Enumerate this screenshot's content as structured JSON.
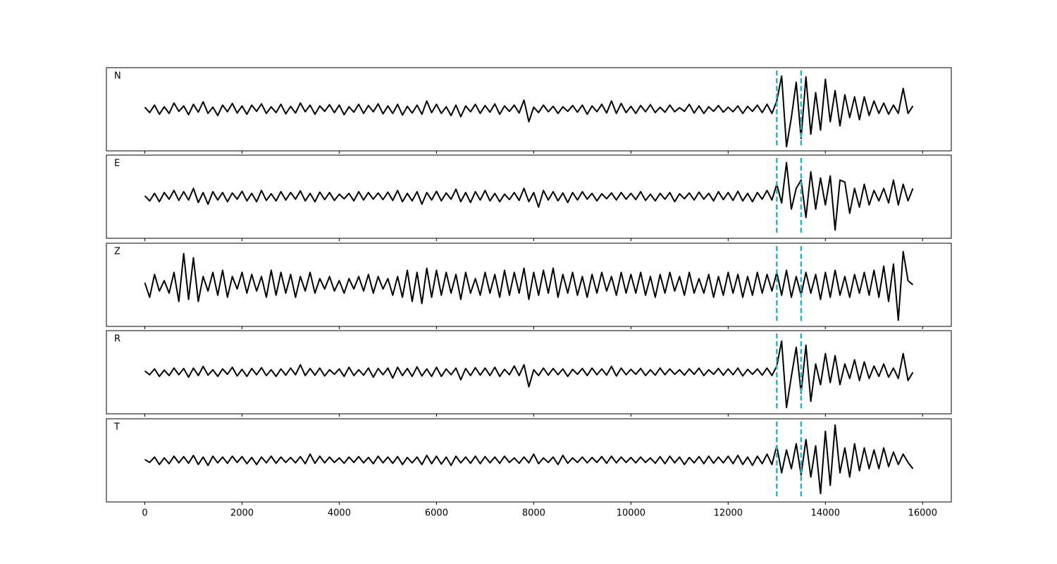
{
  "chart_data": {
    "type": "line",
    "x": [
      0,
      100,
      200,
      300,
      400,
      500,
      600,
      700,
      800,
      900,
      1000,
      1100,
      1200,
      1300,
      1400,
      1500,
      1600,
      1700,
      1800,
      1900,
      2000,
      2100,
      2200,
      2300,
      2400,
      2500,
      2600,
      2700,
      2800,
      2900,
      3000,
      3100,
      3200,
      3300,
      3400,
      3500,
      3600,
      3700,
      3800,
      3900,
      4000,
      4100,
      4200,
      4300,
      4400,
      4500,
      4600,
      4700,
      4800,
      4900,
      5000,
      5100,
      5200,
      5300,
      5400,
      5500,
      5600,
      5700,
      5800,
      5900,
      6000,
      6100,
      6200,
      6300,
      6400,
      6500,
      6600,
      6700,
      6800,
      6900,
      7000,
      7100,
      7200,
      7300,
      7400,
      7500,
      7600,
      7700,
      7800,
      7900,
      8000,
      8100,
      8200,
      8300,
      8400,
      8500,
      8600,
      8700,
      8800,
      8900,
      9000,
      9100,
      9200,
      9300,
      9400,
      9500,
      9600,
      9700,
      9800,
      9900,
      10000,
      10100,
      10200,
      10300,
      10400,
      10500,
      10600,
      10700,
      10800,
      10900,
      11000,
      11100,
      11200,
      11300,
      11400,
      11500,
      11600,
      11700,
      11800,
      11900,
      12000,
      12100,
      12200,
      12300,
      12400,
      12500,
      12600,
      12700,
      12800,
      12900,
      13000,
      13100,
      13200,
      13300,
      13400,
      13500,
      13600,
      13700,
      13800,
      13900,
      14000,
      14100,
      14200,
      14300,
      14400,
      14500,
      14600,
      14700,
      14800,
      14900,
      15000,
      15100,
      15200,
      15300,
      15400,
      15500,
      15600,
      15700,
      15800
    ],
    "series": [
      {
        "name": "N",
        "color": "#000000",
        "values": [
          0.05,
          -0.08,
          0.1,
          -0.12,
          0.06,
          -0.1,
          0.15,
          -0.05,
          0.08,
          -0.13,
          0.12,
          -0.07,
          0.18,
          -0.1,
          0.05,
          -0.15,
          0.1,
          -0.06,
          0.14,
          -0.09,
          0.08,
          -0.12,
          0.1,
          -0.05,
          0.13,
          -0.1,
          0.06,
          -0.08,
          0.12,
          -0.11,
          0.07,
          -0.09,
          0.15,
          -0.06,
          0.1,
          -0.12,
          0.08,
          -0.05,
          0.11,
          -0.08,
          0.1,
          -0.13,
          0.06,
          -0.07,
          0.12,
          -0.1,
          0.09,
          -0.06,
          0.13,
          -0.11,
          0.08,
          -0.1,
          0.12,
          -0.14,
          0.07,
          -0.09,
          0.1,
          -0.12,
          0.2,
          -0.08,
          0.12,
          -0.1,
          0.06,
          -0.15,
          0.1,
          -0.18,
          0.08,
          -0.06,
          0.12,
          -0.1,
          0.09,
          -0.07,
          0.13,
          -0.12,
          0.08,
          -0.05,
          0.1,
          -0.09,
          0.22,
          -0.3,
          0.05,
          -0.08,
          0.1,
          -0.06,
          0.07,
          -0.1,
          0.06,
          -0.05,
          0.09,
          -0.07,
          0.1,
          -0.12,
          0.08,
          -0.06,
          0.12,
          -0.09,
          0.2,
          -0.1,
          0.14,
          -0.08,
          0.07,
          -0.1,
          0.09,
          -0.06,
          0.11,
          -0.08,
          0.05,
          -0.07,
          0.1,
          -0.06,
          0.04,
          -0.05,
          0.12,
          -0.09,
          0.08,
          -0.1,
          0.06,
          -0.05,
          0.09,
          -0.07,
          0.05,
          -0.06,
          0.08,
          -0.1,
          0.07,
          -0.05,
          0.1,
          -0.08,
          0.12,
          -0.1,
          0.2,
          0.8,
          -0.9,
          -0.2,
          0.65,
          -0.7,
          0.78,
          -0.6,
          0.4,
          -0.5,
          0.72,
          -0.3,
          0.45,
          -0.4,
          0.35,
          -0.2,
          0.3,
          -0.25,
          0.3,
          -0.15,
          0.2,
          -0.1,
          0.15,
          -0.12,
          0.1,
          -0.1,
          0.5,
          -0.1,
          0.08
        ]
      },
      {
        "name": "E",
        "color": "#000000",
        "values": [
          0.02,
          -0.1,
          0.08,
          -0.12,
          0.1,
          -0.06,
          0.15,
          -0.09,
          0.12,
          -0.08,
          0.2,
          -0.14,
          0.1,
          -0.18,
          0.12,
          -0.08,
          0.1,
          -0.12,
          0.09,
          -0.06,
          0.13,
          -0.1,
          0.08,
          -0.12,
          0.15,
          -0.09,
          0.07,
          -0.1,
          0.12,
          -0.08,
          0.1,
          -0.06,
          0.14,
          -0.1,
          0.08,
          -0.12,
          0.11,
          -0.07,
          0.1,
          -0.09,
          0.06,
          -0.05,
          0.08,
          -0.1,
          0.12,
          -0.08,
          0.1,
          -0.06,
          0.09,
          -0.07,
          0.11,
          -0.09,
          0.15,
          -0.12,
          0.08,
          -0.1,
          0.12,
          -0.18,
          0.1,
          -0.08,
          0.13,
          -0.1,
          0.09,
          -0.06,
          0.18,
          -0.12,
          0.1,
          -0.14,
          0.12,
          -0.08,
          0.15,
          -0.1,
          0.08,
          -0.12,
          0.06,
          -0.07,
          0.1,
          -0.09,
          0.2,
          -0.12,
          0.1,
          -0.25,
          0.15,
          -0.08,
          0.12,
          -0.1,
          0.09,
          -0.14,
          0.1,
          -0.08,
          0.12,
          -0.06,
          0.08,
          -0.1,
          0.07,
          -0.05,
          0.09,
          -0.08,
          0.1,
          -0.06,
          0.08,
          -0.07,
          0.12,
          -0.09,
          0.06,
          -0.1,
          0.08,
          -0.06,
          0.1,
          -0.12,
          0.07,
          -0.05,
          0.09,
          -0.08,
          0.11,
          -0.06,
          0.08,
          -0.1,
          0.12,
          -0.07,
          0.1,
          -0.09,
          0.13,
          -0.1,
          0.08,
          -0.12,
          0.1,
          -0.06,
          0.15,
          -0.08,
          0.3,
          -0.15,
          0.82,
          -0.3,
          0.2,
          0.4,
          -0.5,
          0.6,
          -0.3,
          0.45,
          -0.2,
          0.5,
          -0.8,
          0.4,
          0.35,
          -0.4,
          0.2,
          -0.25,
          0.3,
          -0.2,
          0.15,
          -0.1,
          0.2,
          -0.15,
          0.4,
          -0.2,
          0.3,
          -0.1,
          0.2
        ]
      },
      {
        "name": "Z",
        "color": "#000000",
        "values": [
          0.05,
          -0.3,
          0.25,
          -0.15,
          0.1,
          -0.2,
          0.3,
          -0.4,
          0.75,
          -0.35,
          0.65,
          -0.4,
          0.2,
          -0.15,
          0.3,
          -0.25,
          0.35,
          -0.3,
          0.2,
          -0.1,
          0.3,
          -0.2,
          0.25,
          -0.15,
          0.2,
          -0.3,
          0.35,
          -0.25,
          0.3,
          -0.2,
          0.25,
          -0.3,
          0.2,
          -0.15,
          0.3,
          -0.2,
          0.15,
          -0.1,
          0.2,
          -0.15,
          0.1,
          -0.2,
          0.15,
          -0.1,
          0.2,
          -0.15,
          0.25,
          -0.2,
          0.2,
          -0.1,
          0.15,
          -0.25,
          0.2,
          -0.3,
          0.35,
          -0.4,
          0.3,
          -0.45,
          0.4,
          -0.3,
          0.35,
          -0.25,
          0.3,
          -0.2,
          0.25,
          -0.35,
          0.3,
          -0.2,
          0.15,
          -0.25,
          0.3,
          -0.2,
          0.25,
          -0.3,
          0.35,
          -0.25,
          0.3,
          -0.2,
          0.4,
          -0.35,
          0.3,
          -0.25,
          0.35,
          -0.2,
          0.4,
          -0.3,
          0.25,
          -0.2,
          0.3,
          -0.25,
          0.2,
          -0.3,
          0.25,
          -0.2,
          0.3,
          -0.15,
          0.2,
          -0.25,
          0.3,
          -0.2,
          0.25,
          -0.2,
          0.3,
          -0.25,
          0.2,
          -0.3,
          0.25,
          -0.2,
          0.3,
          -0.15,
          0.2,
          -0.25,
          0.3,
          -0.2,
          0.15,
          -0.2,
          0.25,
          -0.3,
          0.2,
          -0.25,
          0.3,
          -0.2,
          0.25,
          -0.3,
          0.2,
          -0.25,
          0.3,
          -0.2,
          0.25,
          -0.15,
          0.3,
          -0.25,
          0.35,
          -0.3,
          0.2,
          -0.25,
          0.3,
          -0.2,
          0.25,
          -0.35,
          0.3,
          -0.3,
          0.35,
          -0.25,
          0.2,
          -0.3,
          0.25,
          -0.2,
          0.3,
          -0.25,
          0.35,
          -0.3,
          0.45,
          -0.4,
          0.5,
          -0.85,
          0.8,
          0.1,
          0.0
        ]
      },
      {
        "name": "R",
        "color": "#000000",
        "values": [
          0.03,
          -0.06,
          0.08,
          -0.1,
          0.05,
          -0.08,
          0.1,
          -0.06,
          0.09,
          -0.12,
          0.1,
          -0.08,
          0.14,
          -0.07,
          0.06,
          -0.1,
          0.08,
          -0.05,
          0.12,
          -0.09,
          0.07,
          -0.1,
          0.09,
          -0.06,
          0.11,
          -0.08,
          0.06,
          -0.1,
          0.08,
          -0.07,
          0.1,
          -0.06,
          0.18,
          -0.08,
          0.09,
          -0.07,
          0.1,
          -0.09,
          0.06,
          -0.05,
          0.08,
          -0.1,
          0.12,
          -0.08,
          0.06,
          -0.07,
          0.1,
          -0.12,
          0.09,
          -0.06,
          0.1,
          -0.14,
          0.12,
          -0.08,
          0.09,
          -0.1,
          0.13,
          -0.09,
          0.08,
          -0.1,
          0.12,
          -0.1,
          0.08,
          -0.06,
          0.1,
          -0.18,
          0.09,
          -0.08,
          0.11,
          -0.07,
          0.1,
          -0.08,
          0.12,
          -0.1,
          0.07,
          -0.06,
          0.15,
          -0.08,
          0.18,
          -0.35,
          0.06,
          -0.08,
          0.1,
          -0.07,
          0.09,
          -0.06,
          0.08,
          -0.1,
          0.07,
          -0.05,
          0.09,
          -0.08,
          0.1,
          -0.06,
          0.08,
          -0.07,
          0.14,
          -0.09,
          0.1,
          -0.06,
          0.07,
          -0.05,
          0.09,
          -0.08,
          0.06,
          -0.07,
          0.1,
          -0.06,
          0.08,
          -0.05,
          0.06,
          -0.07,
          0.08,
          -0.05,
          0.1,
          -0.08,
          0.06,
          -0.05,
          0.09,
          -0.07,
          0.08,
          -0.06,
          0.1,
          -0.09,
          0.07,
          -0.05,
          0.08,
          -0.07,
          0.1,
          -0.08,
          0.15,
          0.75,
          -0.85,
          -0.1,
          0.6,
          -0.5,
          0.65,
          -0.7,
          0.2,
          -0.3,
          0.45,
          -0.25,
          0.4,
          -0.3,
          0.2,
          -0.15,
          0.3,
          -0.2,
          0.25,
          -0.15,
          0.15,
          -0.1,
          0.2,
          -0.12,
          0.1,
          -0.15,
          0.45,
          -0.2,
          0.0
        ]
      },
      {
        "name": "T",
        "color": "#000000",
        "values": [
          0.02,
          -0.05,
          0.08,
          -0.1,
          0.06,
          -0.08,
          0.1,
          -0.06,
          0.09,
          -0.07,
          0.12,
          -0.1,
          0.08,
          -0.12,
          0.1,
          -0.06,
          0.08,
          -0.07,
          0.1,
          -0.05,
          0.09,
          -0.08,
          0.07,
          -0.1,
          0.08,
          -0.06,
          0.1,
          -0.07,
          0.08,
          -0.05,
          0.07,
          -0.06,
          0.09,
          -0.08,
          0.15,
          -0.07,
          0.1,
          -0.06,
          0.08,
          -0.05,
          0.06,
          -0.07,
          0.08,
          -0.05,
          0.09,
          -0.06,
          0.07,
          -0.08,
          0.1,
          -0.06,
          0.08,
          -0.07,
          0.09,
          -0.1,
          0.07,
          -0.06,
          0.08,
          -0.1,
          0.12,
          -0.08,
          0.1,
          -0.09,
          0.08,
          -0.12,
          0.1,
          -0.06,
          0.08,
          -0.07,
          0.1,
          -0.08,
          0.09,
          -0.06,
          0.08,
          -0.07,
          0.1,
          -0.05,
          0.06,
          -0.07,
          0.08,
          -0.06,
          0.15,
          -0.08,
          0.06,
          -0.05,
          0.08,
          -0.1,
          0.12,
          -0.07,
          0.06,
          -0.05,
          0.08,
          -0.06,
          0.07,
          -0.05,
          0.09,
          -0.07,
          0.1,
          -0.06,
          0.08,
          -0.05,
          0.07,
          -0.06,
          0.08,
          -0.05,
          0.06,
          -0.07,
          0.09,
          -0.08,
          0.1,
          -0.06,
          0.08,
          -0.1,
          0.07,
          -0.06,
          0.09,
          -0.08,
          0.1,
          -0.07,
          0.08,
          -0.06,
          0.1,
          -0.08,
          0.12,
          -0.1,
          0.08,
          -0.12,
          0.1,
          -0.08,
          0.15,
          -0.1,
          0.35,
          -0.3,
          0.25,
          -0.2,
          0.4,
          -0.35,
          0.5,
          -0.4,
          0.35,
          -0.8,
          0.7,
          -0.6,
          0.85,
          -0.3,
          0.3,
          -0.4,
          0.4,
          -0.25,
          0.3,
          -0.2,
          0.25,
          -0.2,
          0.3,
          -0.15,
          0.2,
          -0.1,
          0.15,
          -0.05,
          -0.2
        ]
      }
    ],
    "xlim": [
      -790,
      16590
    ],
    "xticks": [
      0,
      2000,
      4000,
      6000,
      8000,
      10000,
      12000,
      14000,
      16000
    ],
    "ylim": [
      -1,
      1
    ],
    "vlines": [
      13000,
      13500
    ],
    "vline_color": "#17becf"
  }
}
